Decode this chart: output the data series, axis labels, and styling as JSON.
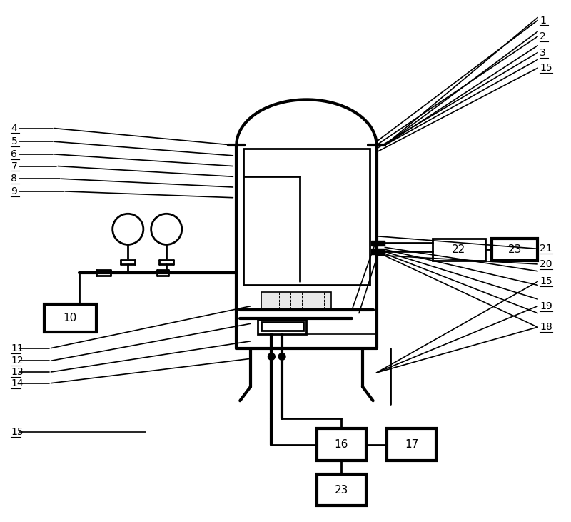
{
  "bg_color": "#ffffff",
  "line_color": "#000000",
  "fig_width": 8.0,
  "fig_height": 7.31
}
